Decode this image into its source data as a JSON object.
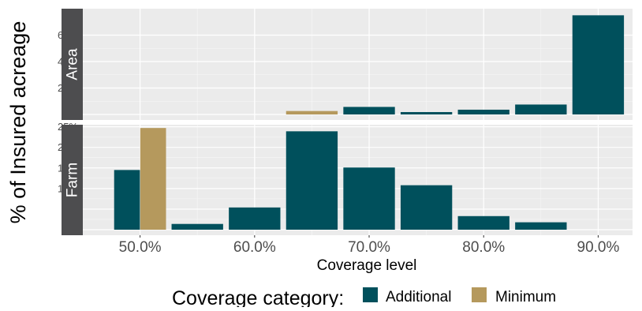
{
  "chart_data": {
    "type": "bar",
    "xlabel": "Coverage level",
    "ylabel": "% of Insured acreage",
    "x_ticks": [
      "50.0%",
      "60.0%",
      "70.0%",
      "80.0%",
      "90.0%"
    ],
    "x_tick_values": [
      50,
      60,
      70,
      80,
      90
    ],
    "xlim": [
      45,
      93
    ],
    "colors": {
      "Additional": "#00505c",
      "Minimum": "#b5995d"
    },
    "legend": {
      "title": "Coverage category:",
      "position": "bottom",
      "entries": [
        "Additional",
        "Minimum"
      ]
    },
    "panels": [
      {
        "strip": "Area",
        "ylim": [
          0,
          80
        ],
        "y_ticks": [
          "0%",
          "20%",
          "40%",
          "60%"
        ],
        "y_tick_values": [
          0,
          20,
          40,
          60
        ],
        "bars": [
          {
            "x": 65,
            "value": 2.6,
            "category": "Minimum"
          },
          {
            "x": 70,
            "value": 5.7,
            "category": "Additional"
          },
          {
            "x": 75,
            "value": 1.8,
            "category": "Additional"
          },
          {
            "x": 80,
            "value": 3.6,
            "category": "Additional"
          },
          {
            "x": 85,
            "value": 7.5,
            "category": "Additional"
          },
          {
            "x": 90,
            "value": 75.0,
            "category": "Additional"
          }
        ]
      },
      {
        "strip": "Farm",
        "ylim": [
          0,
          25.5
        ],
        "y_ticks": [
          "0%",
          "5%",
          "10%",
          "15%",
          "20%",
          "25%"
        ],
        "y_tick_values": [
          0,
          5,
          10,
          15,
          20,
          25
        ],
        "bars": [
          {
            "x": 48.86,
            "value": 14.5,
            "category": "Additional"
          },
          {
            "x": 51.14,
            "value": 24.7,
            "category": "Minimum"
          },
          {
            "x": 55,
            "value": 1.4,
            "category": "Additional"
          },
          {
            "x": 60,
            "value": 5.4,
            "category": "Additional"
          },
          {
            "x": 65,
            "value": 23.9,
            "category": "Additional"
          },
          {
            "x": 70,
            "value": 15.1,
            "category": "Additional"
          },
          {
            "x": 75,
            "value": 10.8,
            "category": "Additional"
          },
          {
            "x": 80,
            "value": 3.3,
            "category": "Additional"
          },
          {
            "x": 85,
            "value": 1.8,
            "category": "Additional"
          }
        ]
      }
    ]
  }
}
